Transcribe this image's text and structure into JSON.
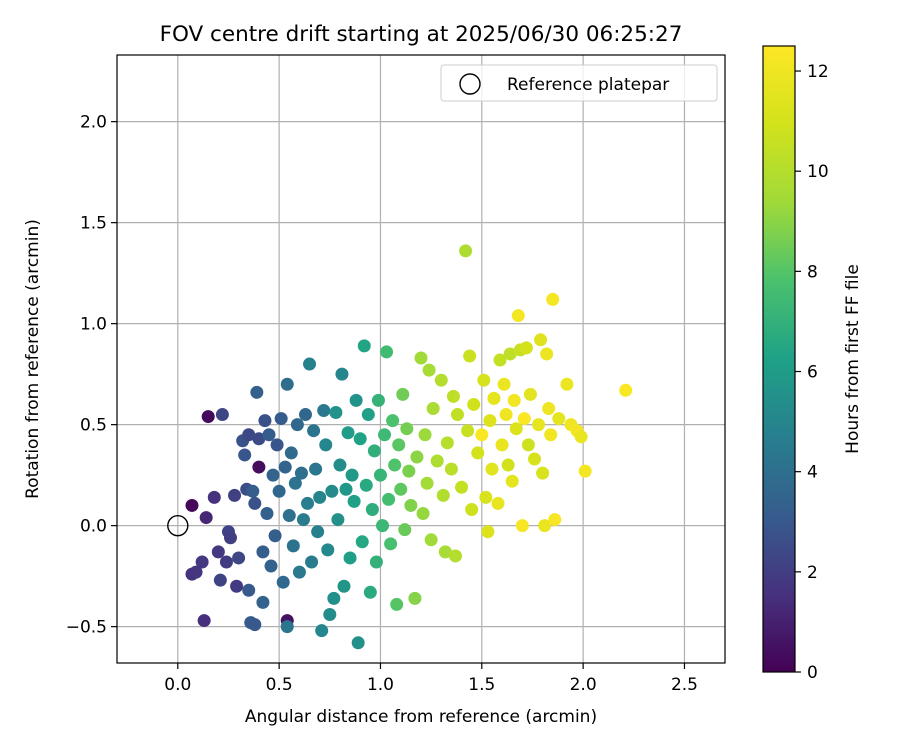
{
  "chart_data": {
    "type": "scatter",
    "title": "FOV centre drift starting at 2025/06/30 06:25:27",
    "xlabel": "Angular distance from reference (arcmin)",
    "ylabel": "Rotation from reference (arcmin)",
    "xlim": [
      -0.3,
      2.7
    ],
    "ylim": [
      -0.68,
      2.33
    ],
    "xticks": [
      0.0,
      0.5,
      1.0,
      1.5,
      2.0,
      2.5
    ],
    "yticks": [
      -0.5,
      0.0,
      0.5,
      1.0,
      1.5,
      2.0
    ],
    "xtick_labels": [
      "0.0",
      "0.5",
      "1.0",
      "1.5",
      "2.0",
      "2.5"
    ],
    "ytick_labels": [
      "−0.5",
      "0.0",
      "0.5",
      "1.0",
      "1.5",
      "2.0"
    ],
    "grid": true,
    "legend": {
      "position": "top-right",
      "entries": [
        "Reference platepar"
      ]
    },
    "reference_point": {
      "x": 0.0,
      "y": 0.0,
      "marker": "open-circle",
      "label": "Reference platepar"
    },
    "colorbar": {
      "label": "Hours from first FF file",
      "colormap": "viridis",
      "range": [
        0,
        12.5
      ],
      "ticks": [
        0,
        2,
        4,
        6,
        8,
        10,
        12
      ],
      "tick_labels": [
        "0",
        "2",
        "4",
        "6",
        "8",
        "10",
        "12"
      ]
    },
    "points": [
      {
        "x": 0.07,
        "y": 0.1,
        "hours": 0.2
      },
      {
        "x": 0.15,
        "y": 0.54,
        "hours": 0.3
      },
      {
        "x": 0.4,
        "y": 0.29,
        "hours": 0.4
      },
      {
        "x": 0.54,
        "y": -0.47,
        "hours": 0.5
      },
      {
        "x": 0.13,
        "y": -0.47,
        "hours": 1.5
      },
      {
        "x": 0.14,
        "y": 0.04,
        "hours": 1.2
      },
      {
        "x": 0.18,
        "y": 0.14,
        "hours": 1.6
      },
      {
        "x": 0.2,
        "y": -0.13,
        "hours": 1.8
      },
      {
        "x": 0.07,
        "y": -0.24,
        "hours": 1.6
      },
      {
        "x": 0.09,
        "y": -0.23,
        "hours": 1.7
      },
      {
        "x": 0.12,
        "y": -0.18,
        "hours": 1.8
      },
      {
        "x": 0.21,
        "y": -0.27,
        "hours": 2.2
      },
      {
        "x": 0.22,
        "y": 0.55,
        "hours": 2.3
      },
      {
        "x": 0.24,
        "y": -0.18,
        "hours": 1.9
      },
      {
        "x": 0.25,
        "y": -0.03,
        "hours": 2.2
      },
      {
        "x": 0.26,
        "y": -0.06,
        "hours": 2.0
      },
      {
        "x": 0.28,
        "y": 0.15,
        "hours": 2.1
      },
      {
        "x": 0.29,
        "y": -0.3,
        "hours": 1.9
      },
      {
        "x": 0.3,
        "y": -0.16,
        "hours": 2.3
      },
      {
        "x": 0.32,
        "y": 0.42,
        "hours": 2.8
      },
      {
        "x": 0.33,
        "y": 0.35,
        "hours": 2.9
      },
      {
        "x": 0.34,
        "y": 0.18,
        "hours": 2.6
      },
      {
        "x": 0.35,
        "y": 0.45,
        "hours": 2.4
      },
      {
        "x": 0.35,
        "y": -0.32,
        "hours": 3.0
      },
      {
        "x": 0.36,
        "y": -0.48,
        "hours": 3.1
      },
      {
        "x": 0.37,
        "y": 0.17,
        "hours": 3.2
      },
      {
        "x": 0.38,
        "y": 0.11,
        "hours": 2.8
      },
      {
        "x": 0.38,
        "y": -0.49,
        "hours": 3.0
      },
      {
        "x": 0.39,
        "y": 0.66,
        "hours": 3.3
      },
      {
        "x": 0.4,
        "y": 0.43,
        "hours": 2.5
      },
      {
        "x": 0.42,
        "y": -0.13,
        "hours": 3.2
      },
      {
        "x": 0.42,
        "y": -0.38,
        "hours": 3.4
      },
      {
        "x": 0.43,
        "y": 0.52,
        "hours": 2.7
      },
      {
        "x": 0.44,
        "y": 0.06,
        "hours": 3.3
      },
      {
        "x": 0.45,
        "y": 0.45,
        "hours": 3.1
      },
      {
        "x": 0.46,
        "y": -0.2,
        "hours": 3.4
      },
      {
        "x": 0.47,
        "y": 0.25,
        "hours": 3.5
      },
      {
        "x": 0.48,
        "y": -0.05,
        "hours": 3.2
      },
      {
        "x": 0.49,
        "y": 0.4,
        "hours": 2.9
      },
      {
        "x": 0.5,
        "y": 0.17,
        "hours": 3.6
      },
      {
        "x": 0.51,
        "y": 0.53,
        "hours": 3.1
      },
      {
        "x": 0.52,
        "y": -0.28,
        "hours": 3.7
      },
      {
        "x": 0.53,
        "y": 0.29,
        "hours": 3.5
      },
      {
        "x": 0.54,
        "y": 0.7,
        "hours": 3.9
      },
      {
        "x": 0.54,
        "y": -0.5,
        "hours": 4.3
      },
      {
        "x": 0.55,
        "y": 0.05,
        "hours": 4.0
      },
      {
        "x": 0.56,
        "y": 0.36,
        "hours": 3.8
      },
      {
        "x": 0.57,
        "y": -0.1,
        "hours": 4.2
      },
      {
        "x": 0.58,
        "y": 0.21,
        "hours": 4.1
      },
      {
        "x": 0.59,
        "y": 0.5,
        "hours": 3.7
      },
      {
        "x": 0.6,
        "y": -0.23,
        "hours": 4.4
      },
      {
        "x": 0.61,
        "y": 0.26,
        "hours": 4.0
      },
      {
        "x": 0.62,
        "y": 0.03,
        "hours": 4.5
      },
      {
        "x": 0.63,
        "y": 0.55,
        "hours": 3.6
      },
      {
        "x": 0.64,
        "y": 0.11,
        "hours": 4.6
      },
      {
        "x": 0.65,
        "y": 0.8,
        "hours": 4.8
      },
      {
        "x": 0.66,
        "y": -0.18,
        "hours": 4.5
      },
      {
        "x": 0.67,
        "y": 0.47,
        "hours": 4.2
      },
      {
        "x": 0.68,
        "y": 0.28,
        "hours": 4.3
      },
      {
        "x": 0.69,
        "y": -0.03,
        "hours": 4.7
      },
      {
        "x": 0.7,
        "y": 0.14,
        "hours": 4.9
      },
      {
        "x": 0.71,
        "y": -0.52,
        "hours": 5.0
      },
      {
        "x": 0.72,
        "y": 0.57,
        "hours": 4.4
      },
      {
        "x": 0.73,
        "y": 0.4,
        "hours": 5.0
      },
      {
        "x": 0.74,
        "y": -0.12,
        "hours": 5.1
      },
      {
        "x": 0.75,
        "y": -0.44,
        "hours": 5.3
      },
      {
        "x": 0.76,
        "y": 0.17,
        "hours": 5.2
      },
      {
        "x": 0.77,
        "y": -0.36,
        "hours": 5.4
      },
      {
        "x": 0.78,
        "y": 0.56,
        "hours": 5.6
      },
      {
        "x": 0.79,
        "y": 0.03,
        "hours": 5.5
      },
      {
        "x": 0.8,
        "y": 0.3,
        "hours": 5.3
      },
      {
        "x": 0.81,
        "y": 0.75,
        "hours": 5.0
      },
      {
        "x": 0.82,
        "y": -0.3,
        "hours": 5.7
      },
      {
        "x": 0.83,
        "y": 0.18,
        "hours": 5.8
      },
      {
        "x": 0.84,
        "y": 0.46,
        "hours": 6.0
      },
      {
        "x": 0.85,
        "y": -0.16,
        "hours": 6.1
      },
      {
        "x": 0.86,
        "y": 0.25,
        "hours": 5.9
      },
      {
        "x": 0.87,
        "y": 0.12,
        "hours": 6.2
      },
      {
        "x": 0.88,
        "y": 0.62,
        "hours": 5.6
      },
      {
        "x": 0.89,
        "y": -0.58,
        "hours": 5.5
      },
      {
        "x": 0.9,
        "y": 0.43,
        "hours": 6.3
      },
      {
        "x": 0.91,
        "y": -0.08,
        "hours": 6.5
      },
      {
        "x": 0.92,
        "y": 0.89,
        "hours": 6.4
      },
      {
        "x": 0.93,
        "y": 0.2,
        "hours": 6.6
      },
      {
        "x": 0.94,
        "y": 0.55,
        "hours": 6.2
      },
      {
        "x": 0.95,
        "y": -0.33,
        "hours": 6.7
      },
      {
        "x": 0.96,
        "y": 0.08,
        "hours": 6.8
      },
      {
        "x": 0.97,
        "y": 0.37,
        "hours": 6.9
      },
      {
        "x": 0.98,
        "y": -0.18,
        "hours": 7.0
      },
      {
        "x": 0.99,
        "y": 0.62,
        "hours": 7.1
      },
      {
        "x": 1.0,
        "y": 0.25,
        "hours": 7.2
      },
      {
        "x": 1.01,
        "y": 0.0,
        "hours": 7.3
      },
      {
        "x": 1.02,
        "y": 0.45,
        "hours": 7.4
      },
      {
        "x": 1.03,
        "y": 0.86,
        "hours": 7.5
      },
      {
        "x": 1.04,
        "y": 0.13,
        "hours": 7.6
      },
      {
        "x": 1.05,
        "y": -0.09,
        "hours": 7.7
      },
      {
        "x": 1.06,
        "y": 0.52,
        "hours": 7.8
      },
      {
        "x": 1.07,
        "y": 0.3,
        "hours": 7.9
      },
      {
        "x": 1.08,
        "y": -0.39,
        "hours": 8.0
      },
      {
        "x": 1.09,
        "y": 0.4,
        "hours": 8.1
      },
      {
        "x": 1.1,
        "y": 0.18,
        "hours": 8.2
      },
      {
        "x": 1.11,
        "y": 0.65,
        "hours": 8.5
      },
      {
        "x": 1.12,
        "y": -0.02,
        "hours": 8.4
      },
      {
        "x": 1.13,
        "y": 0.48,
        "hours": 8.6
      },
      {
        "x": 1.14,
        "y": 0.27,
        "hours": 8.7
      },
      {
        "x": 1.15,
        "y": 0.1,
        "hours": 8.8
      },
      {
        "x": 1.17,
        "y": -0.36,
        "hours": 8.9
      },
      {
        "x": 1.18,
        "y": 0.34,
        "hours": 9.0
      },
      {
        "x": 1.2,
        "y": 0.83,
        "hours": 9.4
      },
      {
        "x": 1.21,
        "y": 0.06,
        "hours": 9.2
      },
      {
        "x": 1.22,
        "y": 0.45,
        "hours": 9.3
      },
      {
        "x": 1.23,
        "y": 0.21,
        "hours": 9.5
      },
      {
        "x": 1.24,
        "y": 0.77,
        "hours": 9.6
      },
      {
        "x": 1.25,
        "y": -0.07,
        "hours": 9.4
      },
      {
        "x": 1.26,
        "y": 0.58,
        "hours": 9.7
      },
      {
        "x": 1.28,
        "y": 0.32,
        "hours": 9.8
      },
      {
        "x": 1.3,
        "y": 0.72,
        "hours": 10.0
      },
      {
        "x": 1.31,
        "y": 0.15,
        "hours": 9.9
      },
      {
        "x": 1.32,
        "y": -0.13,
        "hours": 9.6
      },
      {
        "x": 1.33,
        "y": 0.41,
        "hours": 10.1
      },
      {
        "x": 1.35,
        "y": 0.28,
        "hours": 10.2
      },
      {
        "x": 1.36,
        "y": 0.64,
        "hours": 10.3
      },
      {
        "x": 1.37,
        "y": -0.15,
        "hours": 10.0
      },
      {
        "x": 1.38,
        "y": 0.55,
        "hours": 10.4
      },
      {
        "x": 1.4,
        "y": 0.19,
        "hours": 10.5
      },
      {
        "x": 1.42,
        "y": 1.36,
        "hours": 9.8
      },
      {
        "x": 1.43,
        "y": 0.47,
        "hours": 10.6
      },
      {
        "x": 1.44,
        "y": 0.84,
        "hours": 10.7
      },
      {
        "x": 1.45,
        "y": 0.08,
        "hours": 10.8
      },
      {
        "x": 1.46,
        "y": 0.6,
        "hours": 10.9
      },
      {
        "x": 1.48,
        "y": 0.36,
        "hours": 11.0
      },
      {
        "x": 1.5,
        "y": 0.45,
        "hours": 12.4
      },
      {
        "x": 1.51,
        "y": 0.72,
        "hours": 11.1
      },
      {
        "x": 1.52,
        "y": 0.14,
        "hours": 11.2
      },
      {
        "x": 1.53,
        "y": -0.03,
        "hours": 11.3
      },
      {
        "x": 1.54,
        "y": 0.52,
        "hours": 11.4
      },
      {
        "x": 1.55,
        "y": 0.28,
        "hours": 11.5
      },
      {
        "x": 1.56,
        "y": 0.63,
        "hours": 11.6
      },
      {
        "x": 1.58,
        "y": 0.11,
        "hours": 11.7
      },
      {
        "x": 1.59,
        "y": 0.82,
        "hours": 10.5
      },
      {
        "x": 1.6,
        "y": 0.4,
        "hours": 11.8
      },
      {
        "x": 1.61,
        "y": 0.7,
        "hours": 11.9
      },
      {
        "x": 1.62,
        "y": 0.55,
        "hours": 12.0
      },
      {
        "x": 1.63,
        "y": 0.3,
        "hours": 10.9
      },
      {
        "x": 1.64,
        "y": 0.85,
        "hours": 10.3
      },
      {
        "x": 1.65,
        "y": 0.22,
        "hours": 11.6
      },
      {
        "x": 1.66,
        "y": 0.62,
        "hours": 12.1
      },
      {
        "x": 1.67,
        "y": 0.48,
        "hours": 11.3
      },
      {
        "x": 1.68,
        "y": 1.04,
        "hours": 12.2
      },
      {
        "x": 1.69,
        "y": 0.87,
        "hours": 10.6
      },
      {
        "x": 1.7,
        "y": 0.0,
        "hours": 12.3
      },
      {
        "x": 1.71,
        "y": 0.53,
        "hours": 12.4
      },
      {
        "x": 1.72,
        "y": 0.88,
        "hours": 11.0
      },
      {
        "x": 1.73,
        "y": 0.4,
        "hours": 10.8
      },
      {
        "x": 1.74,
        "y": 0.65,
        "hours": 11.5
      },
      {
        "x": 1.76,
        "y": 0.33,
        "hours": 11.1
      },
      {
        "x": 1.78,
        "y": 0.5,
        "hours": 11.7
      },
      {
        "x": 1.79,
        "y": 0.92,
        "hours": 11.4
      },
      {
        "x": 1.8,
        "y": 0.26,
        "hours": 11.2
      },
      {
        "x": 1.81,
        "y": 0.0,
        "hours": 11.8
      },
      {
        "x": 1.82,
        "y": 0.85,
        "hours": 11.9
      },
      {
        "x": 1.83,
        "y": 0.58,
        "hours": 12.0
      },
      {
        "x": 1.84,
        "y": 0.45,
        "hours": 12.1
      },
      {
        "x": 1.85,
        "y": 1.12,
        "hours": 12.2
      },
      {
        "x": 1.86,
        "y": 0.03,
        "hours": 12.3
      },
      {
        "x": 1.88,
        "y": 0.53,
        "hours": 11.6
      },
      {
        "x": 1.92,
        "y": 0.7,
        "hours": 11.9
      },
      {
        "x": 1.94,
        "y": 0.5,
        "hours": 12.0
      },
      {
        "x": 1.97,
        "y": 0.47,
        "hours": 12.1
      },
      {
        "x": 1.99,
        "y": 0.44,
        "hours": 11.8
      },
      {
        "x": 2.01,
        "y": 0.27,
        "hours": 12.2
      },
      {
        "x": 2.21,
        "y": 0.67,
        "hours": 12.4
      }
    ]
  }
}
